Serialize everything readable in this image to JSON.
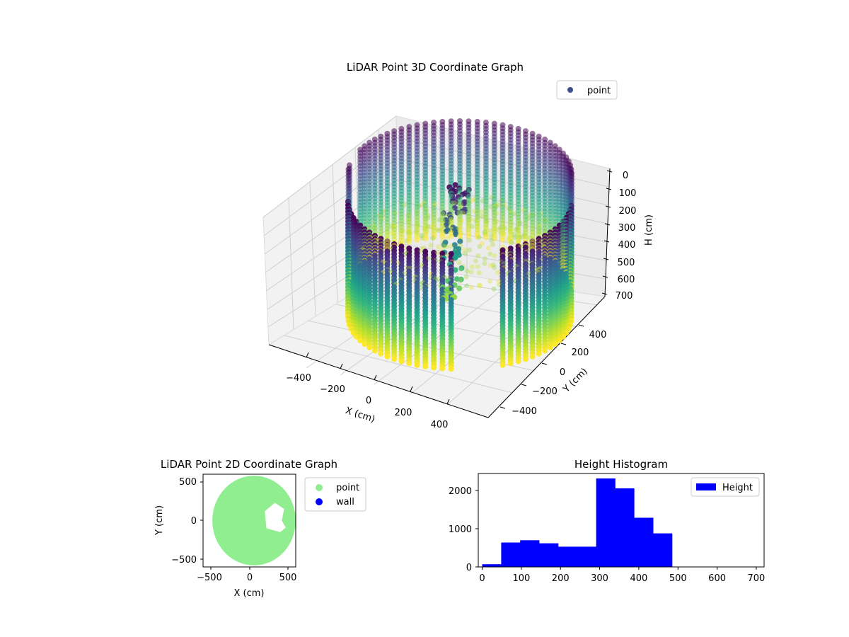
{
  "chart_data": [
    {
      "type": "scatter",
      "projection": "3d",
      "title": "LiDAR Point 3D Coordinate Graph",
      "xlabel": "X (cm)",
      "ylabel": "Y (cm)",
      "zlabel": "H (cm)",
      "xticks": [
        -400,
        -200,
        0,
        200,
        400
      ],
      "yticks": [
        -400,
        -200,
        0,
        200,
        400
      ],
      "zticks": [
        0,
        100,
        200,
        300,
        400,
        500,
        600,
        700
      ],
      "xticklabels": [
        "−400",
        "−200",
        "0",
        "200",
        "400"
      ],
      "yticklabels": [
        "−400",
        "−200",
        "0",
        "200",
        "400"
      ],
      "zticklabels": [
        "0",
        "100",
        "200",
        "300",
        "400",
        "500",
        "600",
        "700"
      ],
      "xlim": [
        -550,
        550
      ],
      "ylim": [
        -550,
        550
      ],
      "zlim": [
        0,
        700
      ],
      "zaxis_inverted": true,
      "colormap": "viridis",
      "legend": {
        "placement": "top-right",
        "entries": [
          {
            "label": "point",
            "color": "#3b4f8a"
          }
        ]
      },
      "series": [
        {
          "name": "point",
          "description_only": "cylindrical wall ring radius ~500 cm, H 0-700, with a doorway gap; vertical column of points near x~0,y~0"
        }
      ],
      "grid": true
    },
    {
      "type": "scatter",
      "title": "LiDAR Point 2D Coordinate Graph",
      "xlabel": "X (cm)",
      "ylabel": "Y (cm)",
      "xticks": [
        -500,
        0,
        500
      ],
      "yticks": [
        -500,
        0,
        500
      ],
      "xticklabels": [
        "−500",
        "0",
        "500"
      ],
      "yticklabels": [
        "−500",
        "0",
        "500"
      ],
      "xlim": [
        -600,
        600
      ],
      "ylim": [
        -600,
        600
      ],
      "legend": {
        "placement": "right-outside",
        "entries": [
          {
            "label": "point",
            "color": "#90ee90"
          },
          {
            "label": "wall",
            "color": "#0000ff"
          }
        ]
      },
      "series": [
        {
          "name": "point",
          "color": "#90ee90"
        },
        {
          "name": "wall",
          "color": "#0000ff"
        }
      ]
    },
    {
      "type": "bar",
      "subtype": "histogram",
      "title": "Height Histogram",
      "xlabel": "",
      "ylabel": "",
      "bin_edges": [
        0,
        48.5,
        97,
        145.5,
        194,
        242.5,
        291,
        339.5,
        388,
        436.5,
        485,
        533.5,
        582,
        630.5,
        679
      ],
      "values": [
        70,
        640,
        700,
        620,
        530,
        530,
        2320,
        2060,
        1290,
        880,
        0,
        0,
        0,
        0
      ],
      "xlim": [
        -10,
        720
      ],
      "ylim": [
        0,
        2450
      ],
      "xticks": [
        0,
        100,
        200,
        300,
        400,
        500,
        600,
        700
      ],
      "yticks": [
        0,
        1000,
        2000
      ],
      "xticklabels": [
        "0",
        "100",
        "200",
        "300",
        "400",
        "500",
        "600",
        "700"
      ],
      "yticklabels": [
        "0",
        "1000",
        "2000"
      ],
      "color": "#0000ff",
      "legend": {
        "placement": "top-right",
        "entries": [
          {
            "label": "Height",
            "color": "#0000ff"
          }
        ]
      },
      "series": [
        {
          "name": "Height",
          "color": "#0000ff"
        }
      ]
    }
  ]
}
